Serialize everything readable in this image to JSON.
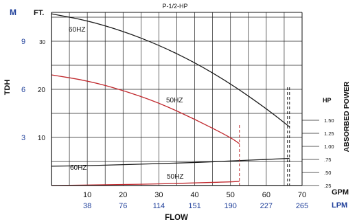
{
  "chart_data": {
    "type": "line",
    "title": "P-1/2-HP",
    "xlabel": "FLOW",
    "ylabel": "TDH",
    "y2label": "ABSORBED POWER",
    "units": {
      "x_primary": "GPM",
      "x_secondary": "LPM",
      "y_primary": "FT.",
      "y_secondary": "M",
      "y2": "HP"
    },
    "x_ticks_gpm": [
      "10",
      "20",
      "30",
      "40",
      "50",
      "60",
      "70"
    ],
    "x_ticks_lpm": [
      "38",
      "76",
      "114",
      "151",
      "190",
      "227",
      "265"
    ],
    "y_ticks_ft": [
      "30",
      "20",
      "10"
    ],
    "y_ticks_m": [
      "9",
      "6",
      "3"
    ],
    "hp_ticks": [
      "1.50",
      "1.25",
      "1.00",
      ".75",
      ".50",
      ".25"
    ],
    "xlim": [
      0,
      70
    ],
    "ylim_ft": [
      0,
      36
    ],
    "hp_range": [
      0.25,
      1.5
    ],
    "grid": true,
    "series": [
      {
        "name": "60HZ",
        "kind": "head",
        "color": "#1a1a1a",
        "x": [
          0,
          10,
          20,
          30,
          40,
          50,
          60,
          66.5
        ],
        "y": [
          35.7,
          34.3,
          32.1,
          29.2,
          25.6,
          21.2,
          16.0,
          12.2
        ]
      },
      {
        "name": "50HZ",
        "kind": "head",
        "color": "#c0282d",
        "x": [
          0,
          10,
          20,
          30,
          40,
          50,
          52.5
        ],
        "y": [
          23.0,
          21.8,
          19.8,
          17.2,
          13.8,
          10.0,
          8.7
        ]
      },
      {
        "name": "60HZ",
        "kind": "power",
        "color": "#1a1a1a",
        "x": [
          0,
          10,
          20,
          30,
          40,
          50,
          60,
          66.5
        ],
        "y": [
          0.62,
          0.63,
          0.65,
          0.67,
          0.69,
          0.72,
          0.75,
          0.77
        ]
      },
      {
        "name": "50HZ",
        "kind": "power",
        "color": "#c0282d",
        "x": [
          0,
          10,
          20,
          30,
          40,
          50,
          52.5
        ],
        "y": [
          0.25,
          0.26,
          0.27,
          0.28,
          0.3,
          0.32,
          0.33
        ]
      }
    ],
    "cutoffs": [
      {
        "x": 52.5,
        "color": "#c0282d"
      },
      {
        "x": 66.5,
        "color": "#1a1a1a"
      }
    ]
  }
}
